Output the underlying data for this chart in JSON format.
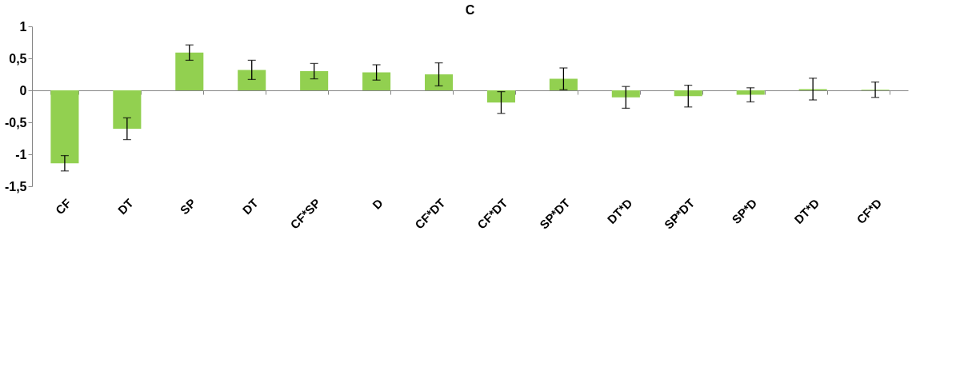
{
  "chart_data": {
    "type": "bar",
    "title": "C",
    "categories": [
      "CF",
      "DT",
      "SP",
      "DT",
      "CF*SP",
      "D",
      "CF*DT",
      "CF*DT",
      "SP*DT",
      "DT*D",
      "SP*DT",
      "SP*D",
      "DT*D",
      "CF*D"
    ],
    "values": [
      -1.14,
      -0.6,
      0.59,
      0.32,
      0.3,
      0.28,
      0.25,
      -0.19,
      0.18,
      -0.11,
      -0.09,
      -0.07,
      0.02,
      0.01
    ],
    "errors": [
      0.12,
      0.17,
      0.12,
      0.15,
      0.12,
      0.12,
      0.18,
      0.17,
      0.17,
      0.17,
      0.17,
      0.11,
      0.17,
      0.12
    ],
    "color": "#92d050",
    "ylim": [
      -1.5,
      1
    ],
    "yticks": [
      {
        "value": -1.5,
        "label": "-1,5"
      },
      {
        "value": -1,
        "label": "-1"
      },
      {
        "value": -0.5,
        "label": "-0,5"
      },
      {
        "value": 0,
        "label": "0"
      },
      {
        "value": 0.5,
        "label": "0,5"
      },
      {
        "value": 1,
        "label": "1"
      }
    ],
    "tick_labels": true
  }
}
